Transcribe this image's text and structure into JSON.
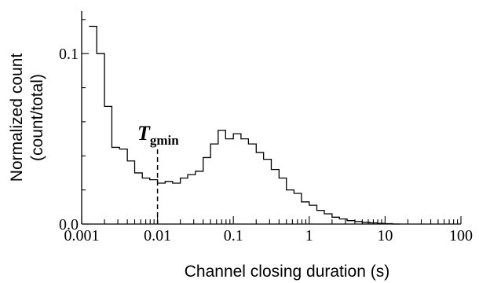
{
  "chart_data": {
    "type": "histogram",
    "xlabel": "Channel closing duration (s)",
    "ylabel_line1": "Normalized count",
    "ylabel_line2": "(count/total)",
    "x_scale": "log",
    "xlim": [
      0.001,
      100
    ],
    "ylim": [
      0,
      0.125
    ],
    "x_ticks": [
      {
        "value": 0.001,
        "label": "0.001"
      },
      {
        "value": 0.01,
        "label": "0.01"
      },
      {
        "value": 0.1,
        "label": "0.1"
      },
      {
        "value": 1,
        "label": "1"
      },
      {
        "value": 10,
        "label": "10"
      },
      {
        "value": 100,
        "label": "100"
      }
    ],
    "y_ticks": [
      {
        "value": 0.0,
        "label": "0.0"
      },
      {
        "value": 0.1,
        "label": "0.1"
      }
    ],
    "bin_edges": [
      0.00125,
      0.00158,
      0.002,
      0.0025,
      0.00316,
      0.004,
      0.005,
      0.0063,
      0.0079,
      0.01,
      0.0126,
      0.0158,
      0.02,
      0.025,
      0.0316,
      0.04,
      0.05,
      0.063,
      0.079,
      0.1,
      0.126,
      0.158,
      0.2,
      0.25,
      0.316,
      0.4,
      0.5,
      0.63,
      0.79,
      1.0,
      1.26,
      1.58,
      2.0,
      2.5,
      3.16,
      4.0,
      5.0,
      6.3,
      7.9,
      10.0,
      12.6,
      15.8
    ],
    "values": [
      0.116,
      0.1,
      0.069,
      0.045,
      0.044,
      0.037,
      0.03,
      0.027,
      0.026,
      0.024,
      0.025,
      0.024,
      0.027,
      0.029,
      0.031,
      0.039,
      0.047,
      0.055,
      0.05,
      0.053,
      0.05,
      0.047,
      0.042,
      0.038,
      0.032,
      0.027,
      0.02,
      0.018,
      0.013,
      0.011,
      0.008,
      0.006,
      0.004,
      0.003,
      0.002,
      0.0015,
      0.001,
      0.0007,
      0.0004,
      0.0002,
      0.0
    ],
    "annotation": {
      "label_main": "T",
      "label_sub": "gmin",
      "x": 0.01,
      "line_style": "dashed"
    }
  }
}
